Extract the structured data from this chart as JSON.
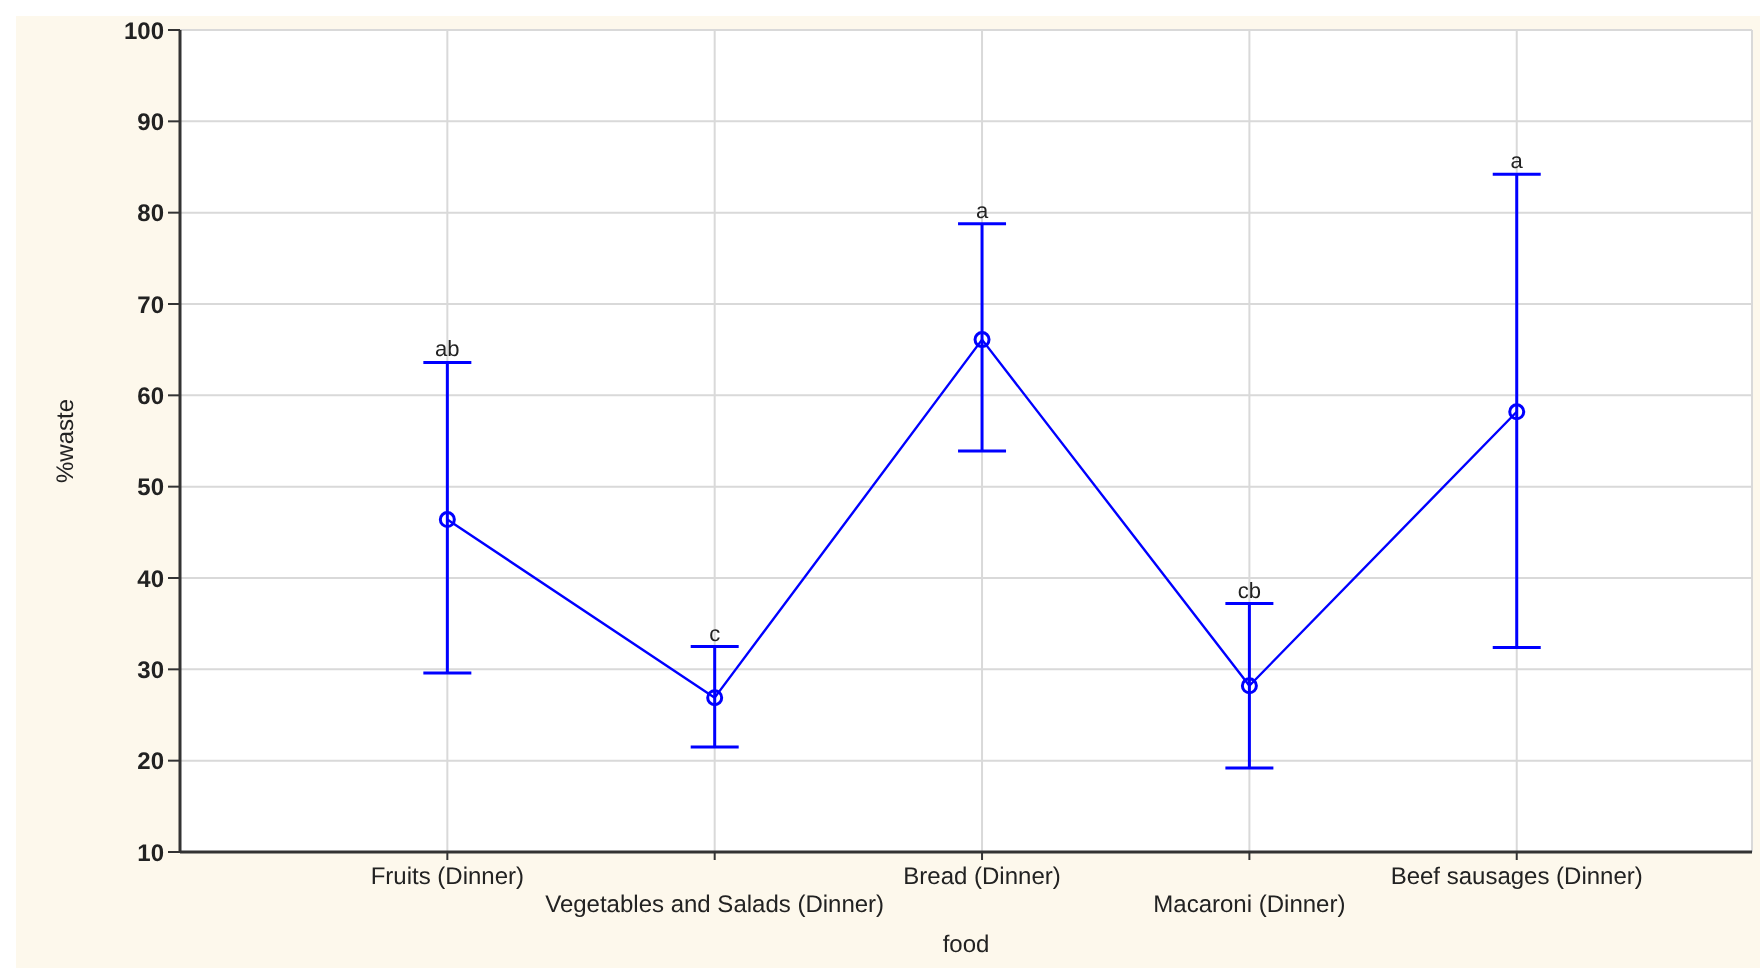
{
  "chart_data": {
    "type": "line",
    "xlabel": "food",
    "ylabel": "%waste",
    "categories": [
      "Fruits (Dinner)",
      "Vegetables and Salads (Dinner)",
      "Bread (Dinner)",
      "Macaroni (Dinner)",
      "Beef sausages (Dinner)"
    ],
    "series": [
      {
        "color": "#0000ff",
        "values": [
          46.4,
          26.9,
          66.1,
          28.2,
          58.2
        ],
        "errors": [
          [
            29.6,
            63.6
          ],
          [
            21.5,
            32.5
          ],
          [
            53.9,
            78.8
          ],
          [
            19.2,
            37.2
          ],
          [
            32.4,
            84.2
          ]
        ]
      }
    ],
    "ylim": [
      10,
      100
    ],
    "yticks": [
      10,
      20,
      30,
      40,
      50,
      60,
      70,
      80,
      90,
      100
    ],
    "grid": true,
    "marker": "circle",
    "line_style": "solid",
    "annotations": [
      {
        "text": "ab",
        "x": "Fruits (Dinner)",
        "y": 63.6
      },
      {
        "text": "c",
        "x": "Vegetables and Salads (Dinner)",
        "y": 32.5
      },
      {
        "text": "a",
        "x": "Bread (Dinner)",
        "y": 78.8
      },
      {
        "text": "cb",
        "x": "Macaroni (Dinner)",
        "y": 37.2
      },
      {
        "text": "a",
        "x": "Beef sausages (Dinner)",
        "y": 84.2
      }
    ]
  }
}
